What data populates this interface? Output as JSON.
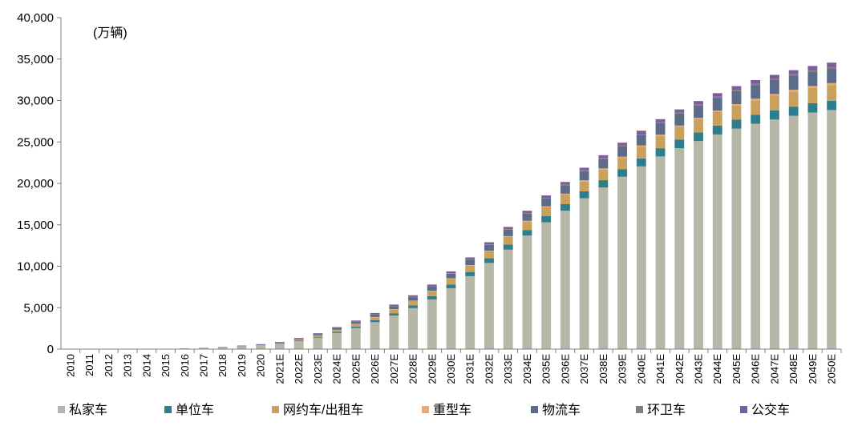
{
  "chart_data": {
    "type": "bar",
    "stacked": true,
    "unit": "(万辆)",
    "ylim": [
      0,
      40000
    ],
    "yticks": [
      "0",
      "5,000",
      "10,000",
      "15,000",
      "20,000",
      "25,000",
      "30,000",
      "35,000",
      "40,000"
    ],
    "ytick_values": [
      0,
      5000,
      10000,
      15000,
      20000,
      25000,
      30000,
      35000,
      40000
    ],
    "grid": false,
    "legend_position": "bottom",
    "categories": [
      "2010",
      "2011",
      "2012",
      "2013",
      "2014",
      "2015",
      "2016",
      "2017",
      "2018",
      "2019",
      "2020",
      "2021E",
      "2022E",
      "2023E",
      "2024E",
      "2025E",
      "2026E",
      "2027E",
      "2028E",
      "2029E",
      "2030E",
      "2031E",
      "2032E",
      "2033E",
      "2034E",
      "2035E",
      "2036E",
      "2037E",
      "2038E",
      "2039E",
      "2040E",
      "2041E",
      "2042E",
      "2043E",
      "2044E",
      "2045E",
      "2046E",
      "2047E",
      "2048E",
      "2049E",
      "2050E"
    ],
    "series": [
      {
        "name": "私家车",
        "color": "#b6b7a6",
        "values": [
          0,
          5,
          10,
          15,
          20,
          30,
          60,
          110,
          180,
          300,
          420,
          600,
          950,
          1380,
          1950,
          2550,
          3250,
          4050,
          4950,
          6000,
          7350,
          8800,
          10400,
          12000,
          13700,
          15300,
          16700,
          18200,
          19500,
          20800,
          22050,
          23250,
          24250,
          25100,
          25900,
          26600,
          27200,
          27700,
          28150,
          28550,
          28850
        ]
      },
      {
        "name": "单位车",
        "color": "#2e7d8c",
        "values": [
          0,
          0,
          0,
          0,
          0,
          1,
          2,
          4,
          8,
          15,
          25,
          40,
          65,
          100,
          140,
          180,
          230,
          280,
          330,
          390,
          450,
          510,
          560,
          620,
          680,
          740,
          790,
          840,
          880,
          920,
          960,
          990,
          1020,
          1040,
          1060,
          1080,
          1090,
          1100,
          1110,
          1115,
          1120
        ]
      },
      {
        "name": "网约车/出租车",
        "color": "#c9a15c",
        "values": [
          0,
          0,
          0,
          0,
          0,
          1,
          3,
          6,
          12,
          25,
          40,
          70,
          110,
          160,
          220,
          290,
          360,
          440,
          520,
          600,
          680,
          760,
          840,
          920,
          1000,
          1080,
          1150,
          1220,
          1290,
          1360,
          1420,
          1480,
          1540,
          1590,
          1640,
          1690,
          1740,
          1780,
          1820,
          1860,
          1900
        ]
      },
      {
        "name": "重型车",
        "color": "#e8a878",
        "values": [
          0,
          0,
          0,
          0,
          0,
          0,
          0,
          1,
          2,
          3,
          5,
          8,
          12,
          18,
          24,
          30,
          37,
          44,
          52,
          60,
          68,
          76,
          84,
          92,
          100,
          108,
          116,
          124,
          132,
          140,
          148,
          156,
          164,
          172,
          180,
          188,
          196,
          204,
          212,
          220,
          228
        ]
      },
      {
        "name": "物流车",
        "color": "#5b6b88",
        "values": [
          0,
          0,
          0,
          0,
          0,
          1,
          3,
          6,
          12,
          22,
          35,
          60,
          90,
          130,
          180,
          230,
          290,
          350,
          420,
          490,
          560,
          630,
          700,
          780,
          860,
          940,
          1020,
          1090,
          1160,
          1230,
          1300,
          1370,
          1430,
          1490,
          1540,
          1590,
          1640,
          1680,
          1720,
          1750,
          1780
        ]
      },
      {
        "name": "环卫车",
        "color": "#8a7a72",
        "values": [
          0,
          0,
          0,
          0,
          0,
          0,
          1,
          2,
          3,
          5,
          7,
          10,
          14,
          18,
          22,
          27,
          32,
          37,
          42,
          48,
          54,
          60,
          66,
          72,
          78,
          84,
          90,
          96,
          102,
          108,
          114,
          120,
          126,
          132,
          138,
          144,
          150,
          156,
          162,
          168,
          174
        ]
      },
      {
        "name": "公交车",
        "color": "#7b5c9c",
        "values": [
          0,
          1,
          2,
          3,
          5,
          10,
          20,
          35,
          50,
          60,
          65,
          80,
          95,
          110,
          125,
          140,
          155,
          170,
          185,
          200,
          215,
          230,
          245,
          260,
          275,
          290,
          305,
          320,
          335,
          350,
          365,
          380,
          395,
          410,
          425,
          440,
          455,
          470,
          485,
          500,
          515
        ]
      }
    ]
  }
}
